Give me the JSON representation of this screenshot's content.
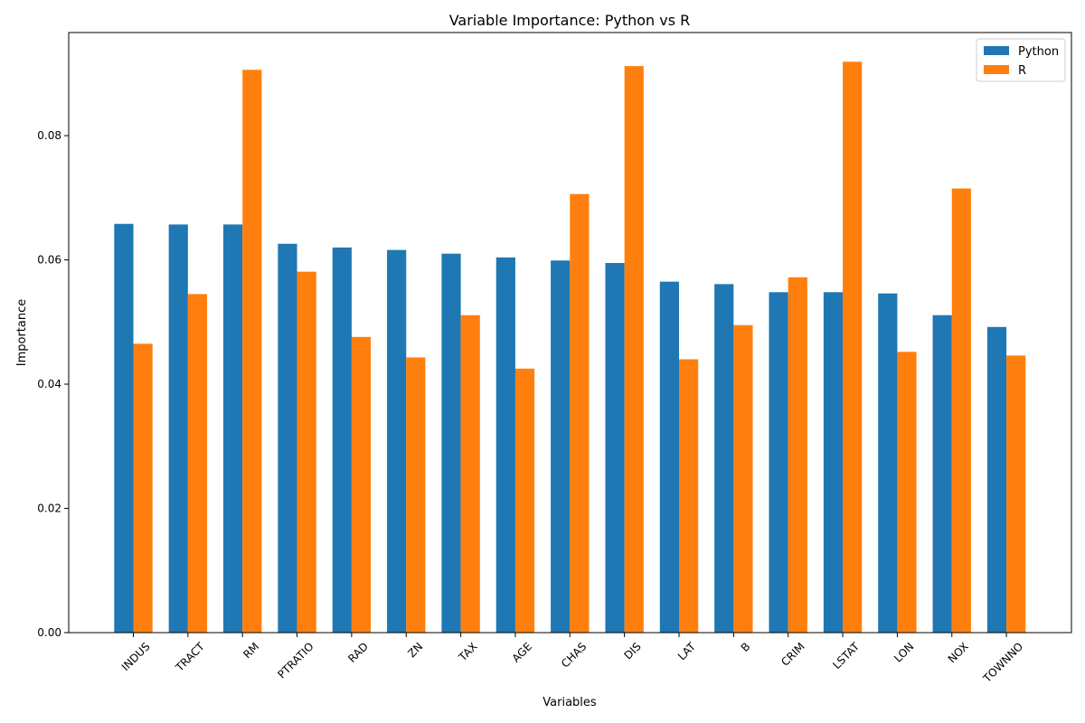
{
  "chart_data": {
    "type": "bar",
    "title": "Variable Importance: Python vs R",
    "xlabel": "Variables",
    "ylabel": "Importance",
    "ylim": [
      0,
      0.0966
    ],
    "yticks": [
      0.0,
      0.02,
      0.04,
      0.06,
      0.08
    ],
    "ytick_labels": [
      "0.00",
      "0.02",
      "0.04",
      "0.06",
      "0.08"
    ],
    "grid": false,
    "legend_position": "top-right",
    "categories": [
      "INDUS",
      "TRACT",
      "RM",
      "PTRATIO",
      "RAD",
      "ZN",
      "TAX",
      "AGE",
      "CHAS",
      "DIS",
      "LAT",
      "B",
      "CRIM",
      "LSTAT",
      "LON",
      "NOX",
      "TOWNNO"
    ],
    "series": [
      {
        "name": "Python",
        "color": "#1f77b4",
        "values": [
          0.0658,
          0.0657,
          0.0657,
          0.0626,
          0.062,
          0.0616,
          0.061,
          0.0604,
          0.0599,
          0.0595,
          0.0565,
          0.0561,
          0.0548,
          0.0548,
          0.0546,
          0.0511,
          0.0492
        ]
      },
      {
        "name": "R",
        "color": "#ff7f0e",
        "values": [
          0.0465,
          0.0545,
          0.0906,
          0.0581,
          0.0476,
          0.0443,
          0.0511,
          0.0425,
          0.0706,
          0.0912,
          0.044,
          0.0495,
          0.0572,
          0.0919,
          0.0452,
          0.0715,
          0.0446
        ]
      }
    ]
  }
}
